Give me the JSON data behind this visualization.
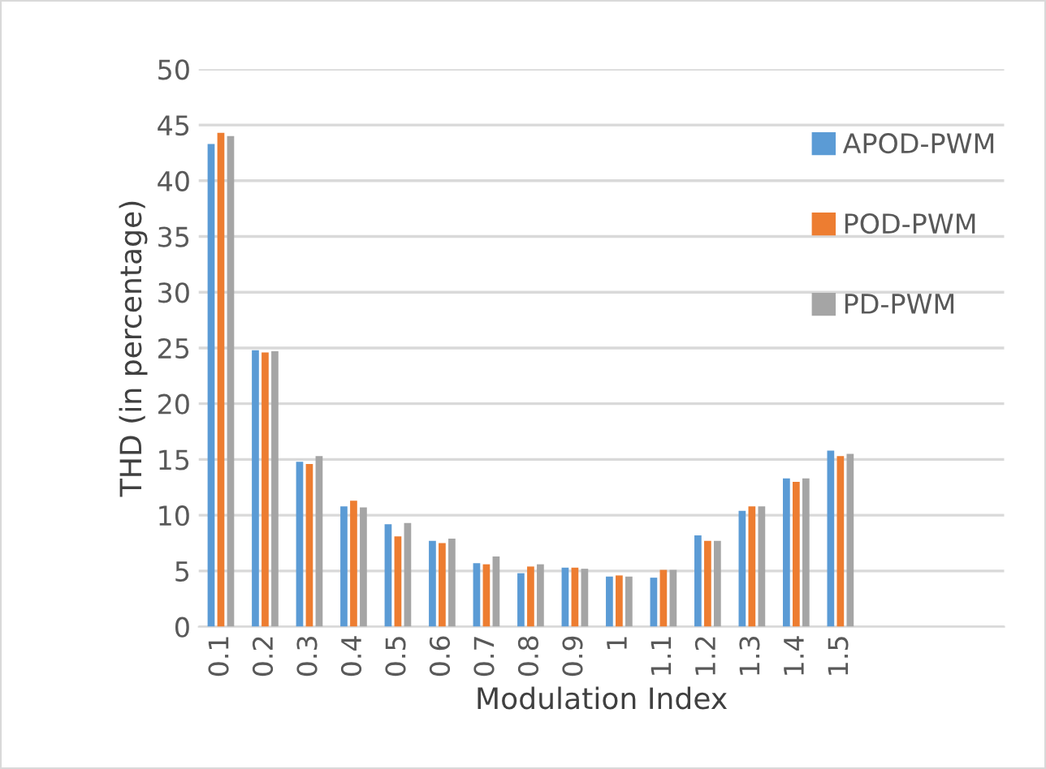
{
  "chart_data": {
    "type": "bar",
    "xlabel": "Modulation Index",
    "ylabel": "THD (in percentage)",
    "categories": [
      "0.1",
      "0.2",
      "0.3",
      "0.4",
      "0.5",
      "0.6",
      "0.7",
      "0.8",
      "0.9",
      "1",
      "1.1",
      "1.2",
      "1.3",
      "1.4",
      "1.5"
    ],
    "series": [
      {
        "name": "APOD-PWM",
        "color": "#5b9bd5",
        "values": [
          43.3,
          24.8,
          14.8,
          10.8,
          9.2,
          7.7,
          5.7,
          4.8,
          5.3,
          4.5,
          4.4,
          8.2,
          10.4,
          13.3,
          15.8
        ]
      },
      {
        "name": "POD-PWM",
        "color": "#ed7d31",
        "values": [
          44.3,
          24.6,
          14.6,
          11.3,
          8.1,
          7.5,
          5.6,
          5.4,
          5.3,
          4.6,
          5.1,
          7.7,
          10.8,
          13.0,
          15.3
        ]
      },
      {
        "name": "PD-PWM",
        "color": "#a5a5a5",
        "values": [
          44.0,
          24.7,
          15.3,
          10.7,
          9.3,
          7.9,
          6.3,
          5.6,
          5.2,
          4.5,
          5.1,
          7.7,
          10.8,
          13.3,
          15.5
        ]
      }
    ],
    "ylim": [
      0,
      50
    ],
    "yticks": [
      0,
      5,
      10,
      15,
      20,
      25,
      30,
      35,
      40,
      45,
      50
    ],
    "grid": "y",
    "legend": "top right"
  }
}
